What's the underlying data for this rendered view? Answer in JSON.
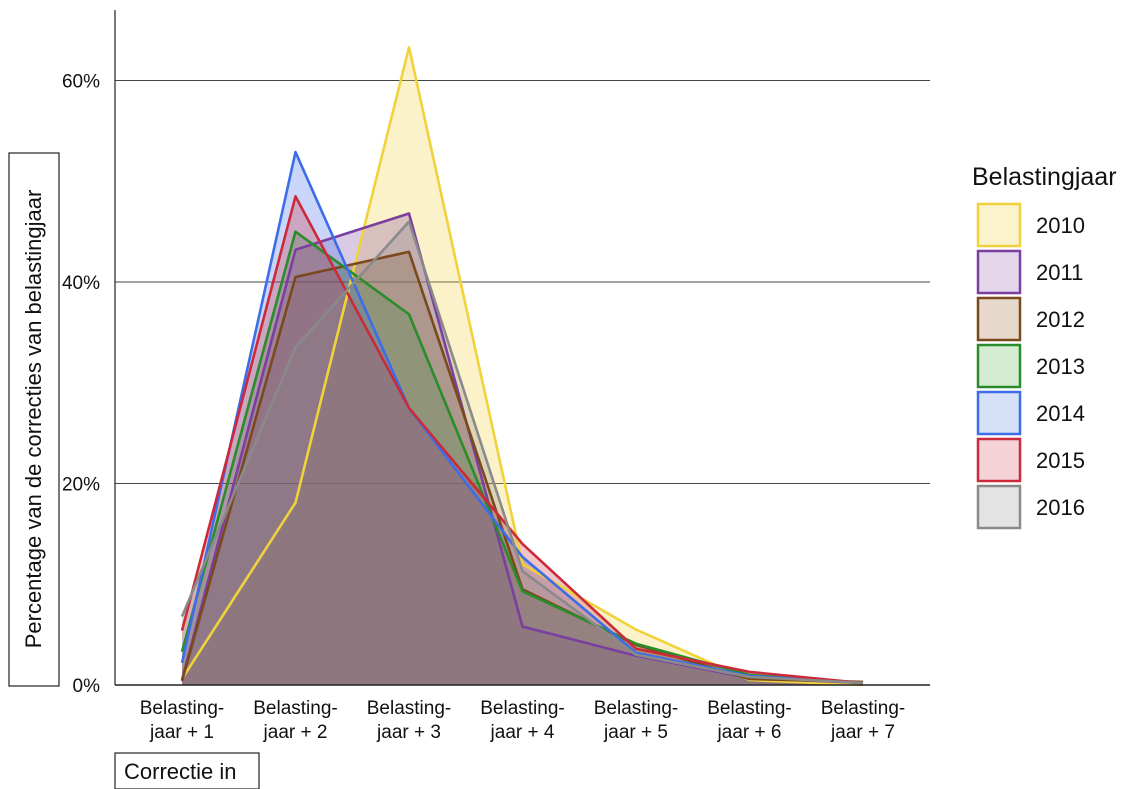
{
  "chart_data": {
    "type": "area",
    "title": "",
    "xlabel": "Correctie in",
    "ylabel": "Percentage van de correcties van belastingjaar",
    "categories": [
      [
        "Belasting-",
        "jaar + 1"
      ],
      [
        "Belasting-",
        "jaar + 2"
      ],
      [
        "Belasting-",
        "jaar + 3"
      ],
      [
        "Belasting-",
        "jaar + 4"
      ],
      [
        "Belasting-",
        "jaar + 5"
      ],
      [
        "Belasting-",
        "jaar + 6"
      ],
      [
        "Belasting-",
        "jaar + 7"
      ]
    ],
    "ylim": [
      0,
      0.67
    ],
    "y_ticks": [
      0,
      0.2,
      0.4,
      0.6
    ],
    "y_tick_labels": [
      "0%",
      "20%",
      "40%",
      "60%"
    ],
    "grid": "horizontal",
    "legend": {
      "title": "Belastingjaar",
      "position": "right"
    },
    "series": [
      {
        "name": "2010",
        "color": "#f0d23c",
        "fill": "#fbf3cc",
        "values": [
          0.006,
          0.181,
          0.633,
          0.12,
          0.055,
          0.005,
          0.0
        ]
      },
      {
        "name": "2011",
        "color": "#7b3fa0",
        "fill": "#e3d6ea",
        "values": [
          0.005,
          0.432,
          0.468,
          0.058,
          0.029,
          0.007,
          0.002
        ]
      },
      {
        "name": "2012",
        "color": "#7b4a1c",
        "fill": "#e6d8cb",
        "values": [
          0.004,
          0.405,
          0.43,
          0.095,
          0.04,
          0.006,
          0.003
        ]
      },
      {
        "name": "2013",
        "color": "#2a8c2a",
        "fill": "#d4ecd1",
        "values": [
          0.033,
          0.45,
          0.368,
          0.093,
          0.041,
          0.01,
          0.002
        ]
      },
      {
        "name": "2014",
        "color": "#3d6de8",
        "fill": "#d6e1f8",
        "values": [
          0.022,
          0.529,
          0.275,
          0.127,
          0.032,
          0.009,
          0.002
        ]
      },
      {
        "name": "2015",
        "color": "#cc2a3a",
        "fill": "#f3d3d6",
        "values": [
          0.054,
          0.485,
          0.275,
          0.14,
          0.036,
          0.013,
          0.002
        ]
      },
      {
        "name": "2016",
        "color": "#8a8a8a",
        "fill": "#e3e3e3",
        "values": [
          0.068,
          0.335,
          0.46,
          0.113,
          0.03,
          0.008,
          0.002
        ]
      }
    ]
  }
}
